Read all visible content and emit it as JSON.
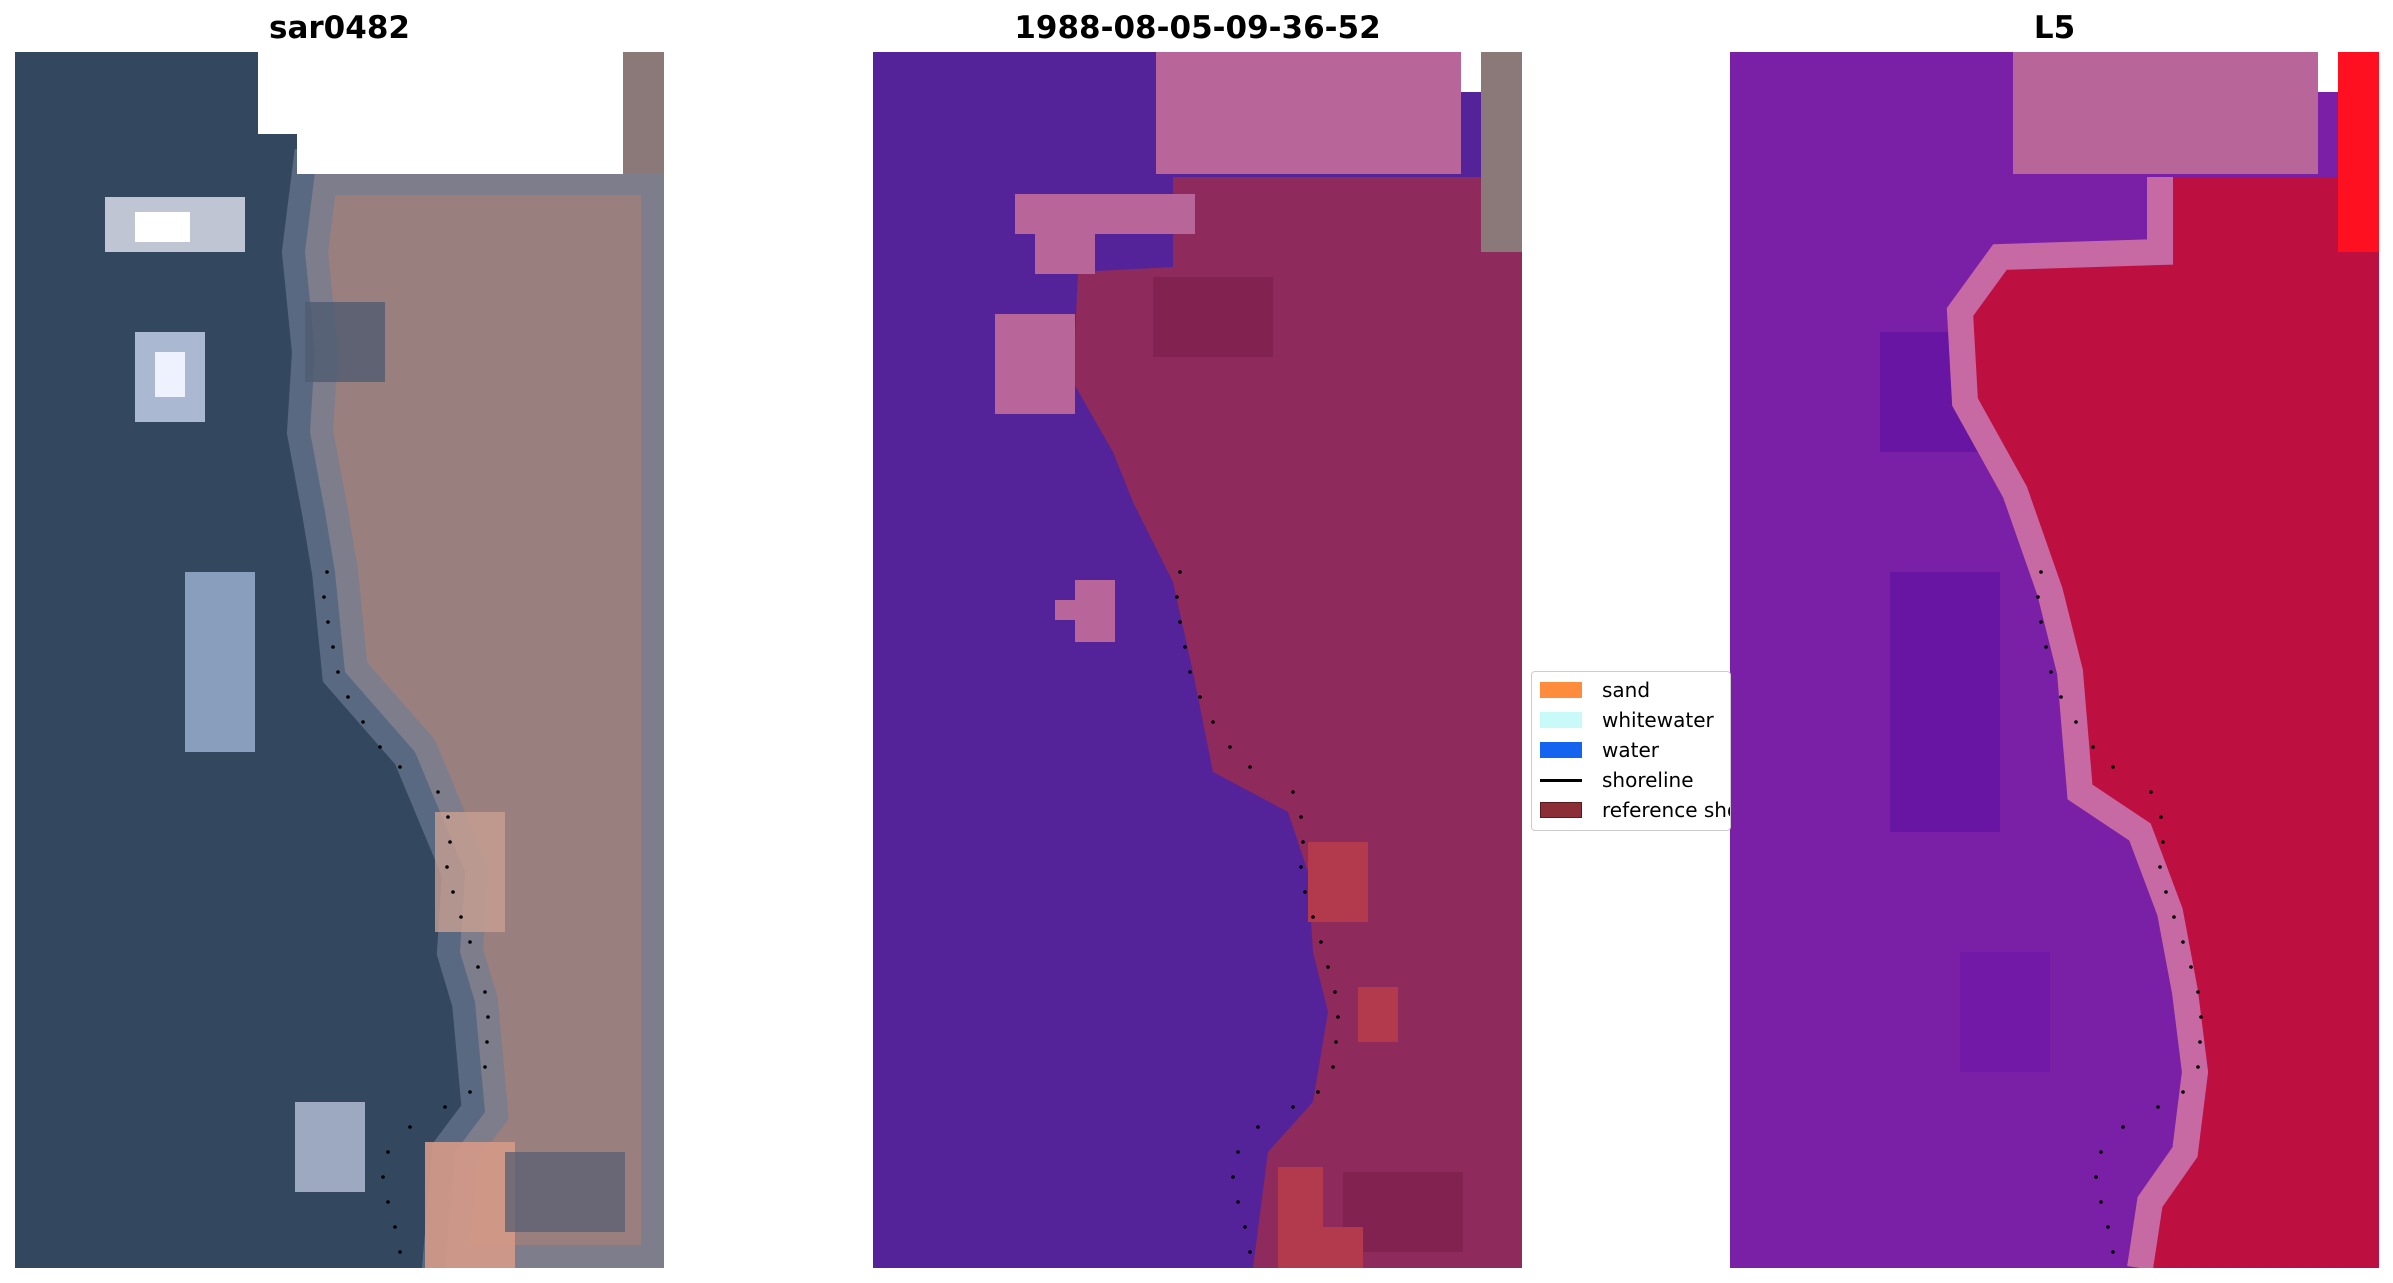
{
  "panels": [
    {
      "title": "sar0482"
    },
    {
      "title": "1988-08-05-09-36-52"
    },
    {
      "title": "L5"
    }
  ],
  "legend": {
    "items": [
      {
        "label": "sand",
        "color": "#ff8c3c",
        "kind": "patch"
      },
      {
        "label": "whitewater",
        "color": "#c8fafa",
        "kind": "patch"
      },
      {
        "label": "water",
        "color": "#1464f0",
        "kind": "patch"
      },
      {
        "label": "shoreline",
        "color": "#000000",
        "kind": "line"
      },
      {
        "label": "reference shoreline",
        "color": "#8b2e35",
        "kind": "patch"
      }
    ]
  },
  "colors": {
    "ocean_rgb": "#33475f",
    "land_rgb": "#9a7f7f",
    "classified_water": "#54239a",
    "classified_land": "#8f2a5c",
    "classified_cloud": "#b8669a",
    "index_water": "#7a20a6",
    "index_land": "#bd1040",
    "index_edge": "#c76aa4",
    "nodata": "#ffffff"
  }
}
